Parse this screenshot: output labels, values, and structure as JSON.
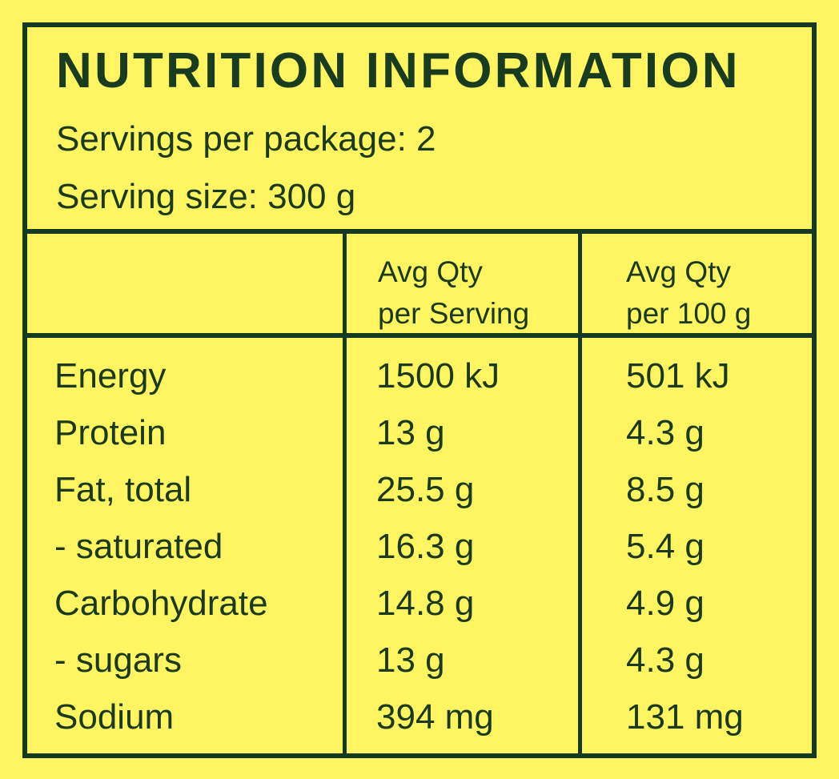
{
  "label": {
    "title": "NUTRITION INFORMATION",
    "servings_per_package": "Servings per package: 2",
    "serving_size": "Serving size: 300 g",
    "columns": {
      "name": "",
      "per_serving": "Avg Qty\nper Serving",
      "per_100g": "Avg Qty\nper 100 g"
    },
    "rows": [
      {
        "name": "Energy",
        "per_serving": "1500 kJ",
        "per_100g": "501 kJ"
      },
      {
        "name": "Protein",
        "per_serving": "13 g",
        "per_100g": "4.3 g"
      },
      {
        "name": "Fat, total",
        "per_serving": "25.5 g",
        "per_100g": "8.5 g"
      },
      {
        "name": "- saturated",
        "per_serving": "16.3 g",
        "per_100g": "5.4 g"
      },
      {
        "name": "Carbohydrate",
        "per_serving": "14.8 g",
        "per_100g": "4.9 g"
      },
      {
        "name": "- sugars",
        "per_serving": "13 g",
        "per_100g": "4.3 g"
      },
      {
        "name": "Sodium",
        "per_serving": "394 mg",
        "per_100g": "131 mg"
      }
    ]
  },
  "colors": {
    "background": "#fff461",
    "ink": "#163a1f"
  }
}
